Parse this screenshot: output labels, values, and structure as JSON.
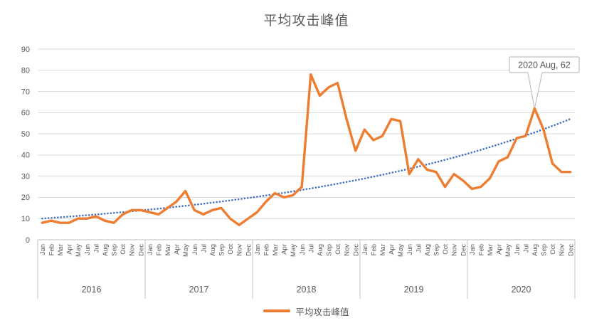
{
  "title": "平均攻击峰值",
  "legend": {
    "label": "平均攻击峰值"
  },
  "annotation": {
    "label": "2020 Aug, 62",
    "year": "2020",
    "month": "Aug",
    "value": 62,
    "month_index": 55
  },
  "colors": {
    "series_orange": "#ED7D31",
    "trendline_blue": "#4472C4",
    "gridline": "#D9D9D9",
    "axis_line": "#BFBFBF",
    "text_gray": "#595959",
    "callout_border": "#BFBFBF",
    "callout_fill": "#FFFFFF"
  },
  "chart_data": {
    "type": "line",
    "title": "平均攻击峰值",
    "xlabel": "",
    "ylabel": "",
    "ylim": [
      0,
      90
    ],
    "ytick_step": 10,
    "ytick_labels": [
      "0",
      "10",
      "20",
      "30",
      "40",
      "50",
      "60",
      "70",
      "80",
      "90"
    ],
    "grid": true,
    "legend_position": "bottom",
    "x_months": [
      "Jan",
      "Feb",
      "Mar",
      "Apr",
      "May",
      "Jun",
      "Jul",
      "Aug",
      "Sep",
      "Oct",
      "Nov",
      "Dec"
    ],
    "x_years": [
      "2016",
      "2017",
      "2018",
      "2019",
      "2020"
    ],
    "series": [
      {
        "name": "平均攻击峰值",
        "color": "#ED7D31",
        "values": [
          8,
          9,
          8,
          8,
          10,
          10,
          11,
          9,
          8,
          12,
          14,
          14,
          13,
          12,
          15,
          18,
          23,
          14,
          12,
          14,
          15,
          10,
          7,
          10,
          13,
          18,
          22,
          20,
          21,
          25,
          78,
          68,
          72,
          74,
          57,
          42,
          52,
          47,
          49,
          57,
          56,
          31,
          38,
          33,
          32,
          25,
          31,
          28,
          24,
          25,
          29,
          37,
          39,
          48,
          49,
          62,
          52,
          36,
          32,
          32
        ]
      }
    ],
    "trendline": {
      "style": "dotted",
      "color": "#4472C4",
      "shape": "exponential",
      "start_value": 10,
      "end_value": 57
    }
  }
}
